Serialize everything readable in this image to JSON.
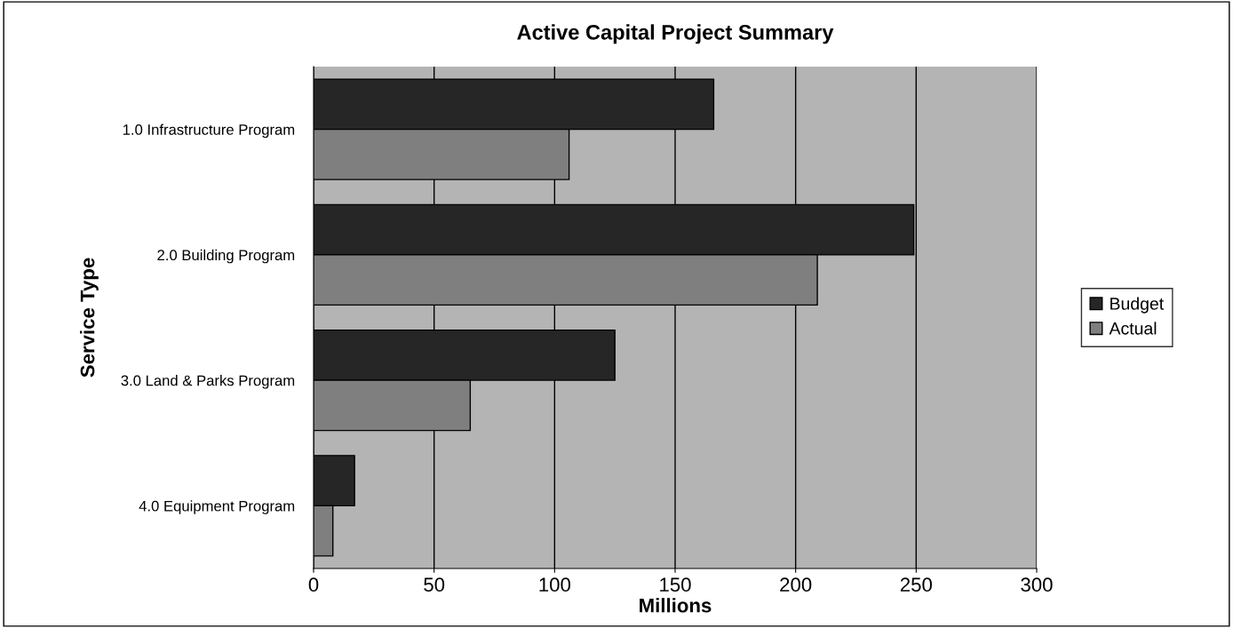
{
  "chart_data": {
    "type": "bar",
    "orientation": "horizontal",
    "title": "Active Capital Project Summary",
    "xlabel": "Millions",
    "ylabel": "Service Type",
    "categories": [
      "1.0 Infrastructure Program",
      "2.0 Building Program",
      "3.0 Land & Parks Program",
      "4.0 Equipment Program"
    ],
    "series": [
      {
        "name": "Budget",
        "color": "#262626",
        "values": [
          166,
          249,
          125,
          17
        ]
      },
      {
        "name": "Actual",
        "color": "#7f7f7f",
        "values": [
          106,
          209,
          65,
          8
        ]
      }
    ],
    "xlim": [
      0,
      300
    ],
    "xticks": [
      0,
      50,
      100,
      150,
      200,
      250,
      300
    ],
    "grid": "x",
    "legend": "right"
  }
}
